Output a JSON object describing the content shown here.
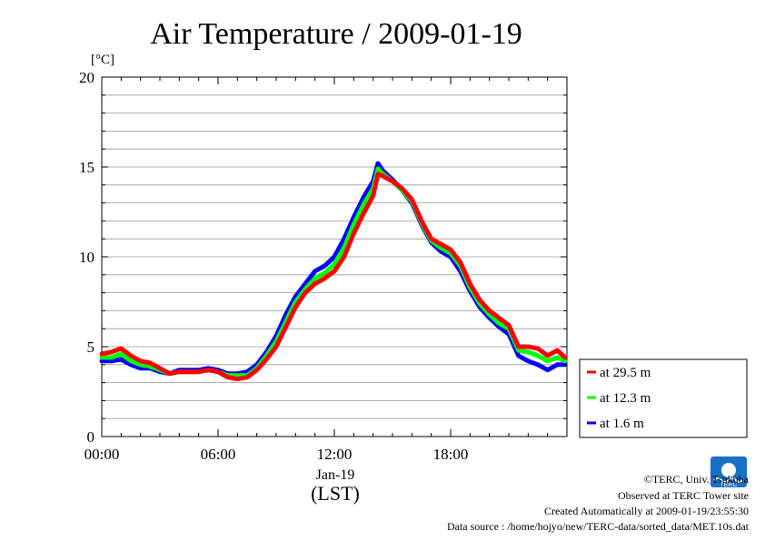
{
  "chart_data": {
    "type": "line",
    "title": "Air Temperature / 2009-01-19",
    "ylabel": "[°C]",
    "date_label": "Jan-19",
    "xlabel": "(LST)",
    "xlim": [
      0,
      24
    ],
    "ylim": [
      0,
      20
    ],
    "grid": true,
    "legend_position": "right",
    "x_ticks": [
      {
        "value": 0,
        "label": "00:00"
      },
      {
        "value": 6,
        "label": "06:00"
      },
      {
        "value": 12,
        "label": "12:00"
      },
      {
        "value": 18,
        "label": "18:00"
      }
    ],
    "y_ticks": [
      {
        "value": 0,
        "label": "0"
      },
      {
        "value": 5,
        "label": "5"
      },
      {
        "value": 10,
        "label": "10"
      },
      {
        "value": 15,
        "label": "15"
      },
      {
        "value": 20,
        "label": "20"
      }
    ],
    "x": [
      0.0,
      0.5,
      1.0,
      1.5,
      2.0,
      2.5,
      3.0,
      3.5,
      4.0,
      4.5,
      5.0,
      5.5,
      6.0,
      6.5,
      7.0,
      7.5,
      8.0,
      8.5,
      9.0,
      9.5,
      10.0,
      10.5,
      11.0,
      11.5,
      12.0,
      12.5,
      13.0,
      13.5,
      14.0,
      14.25,
      14.5,
      15.0,
      15.5,
      16.0,
      16.5,
      17.0,
      17.5,
      18.0,
      18.5,
      19.0,
      19.5,
      20.0,
      20.5,
      21.0,
      21.5,
      22.0,
      22.5,
      23.0,
      23.5,
      23.9
    ],
    "series": [
      {
        "name": "at 29.5 m",
        "color": "#ff0000",
        "values": [
          4.6,
          4.7,
          4.9,
          4.5,
          4.2,
          4.1,
          3.8,
          3.5,
          3.6,
          3.6,
          3.6,
          3.7,
          3.6,
          3.3,
          3.2,
          3.3,
          3.7,
          4.3,
          5.0,
          6.1,
          7.2,
          8.0,
          8.5,
          8.8,
          9.2,
          10.0,
          11.3,
          12.4,
          13.4,
          14.6,
          14.5,
          14.2,
          13.8,
          13.2,
          12.0,
          11.0,
          10.7,
          10.4,
          9.7,
          8.5,
          7.6,
          7.0,
          6.6,
          6.2,
          5.0,
          5.0,
          4.9,
          4.5,
          4.8,
          4.4
        ]
      },
      {
        "name": "at 12.3 m",
        "color": "#00ff00",
        "values": [
          4.4,
          4.4,
          4.6,
          4.2,
          4.0,
          3.9,
          3.7,
          3.5,
          3.6,
          3.6,
          3.6,
          3.7,
          3.6,
          3.4,
          3.4,
          3.4,
          3.8,
          4.5,
          5.3,
          6.4,
          7.5,
          8.2,
          8.8,
          9.1,
          9.6,
          10.5,
          11.8,
          12.9,
          13.8,
          14.9,
          14.6,
          14.2,
          13.7,
          13.1,
          11.9,
          10.9,
          10.5,
          10.2,
          9.5,
          8.3,
          7.4,
          6.8,
          6.3,
          6.0,
          4.8,
          4.7,
          4.5,
          4.2,
          4.4,
          4.2
        ]
      },
      {
        "name": "at 1.6 m",
        "color": "#0000ff",
        "values": [
          4.2,
          4.2,
          4.3,
          4.0,
          3.8,
          3.8,
          3.6,
          3.5,
          3.7,
          3.7,
          3.7,
          3.8,
          3.7,
          3.5,
          3.5,
          3.6,
          4.0,
          4.7,
          5.6,
          6.8,
          7.8,
          8.5,
          9.2,
          9.5,
          10.0,
          11.0,
          12.2,
          13.3,
          14.2,
          15.2,
          14.8,
          14.3,
          13.7,
          13.0,
          11.8,
          10.8,
          10.3,
          10.0,
          9.2,
          8.1,
          7.2,
          6.6,
          6.1,
          5.7,
          4.5,
          4.2,
          4.0,
          3.7,
          4.0,
          4.0
        ]
      }
    ]
  },
  "footer": {
    "copyright": "©TERC, Univ. Tsukuba",
    "observed": "Observed at TERC Tower site",
    "created": "Created Automatically at 2009-01-19/23:55:30",
    "source": "Data source : /home/hojyo/new/TERC-data/sorted_data/MET.10s.dat",
    "logo_text": "TERC"
  }
}
